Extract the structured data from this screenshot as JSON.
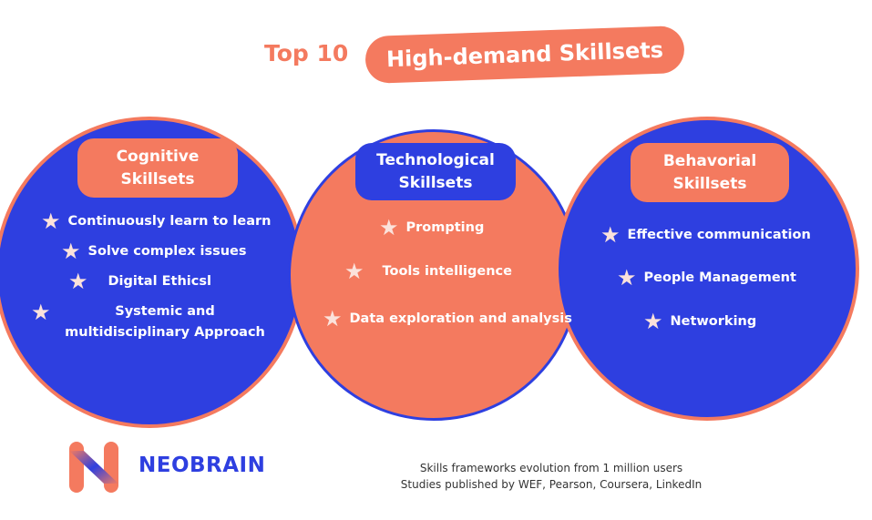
{
  "header": {
    "prefix": "Top 10",
    "title": "High-demand Skillsets"
  },
  "colors": {
    "blue": "#2e3fe0",
    "coral": "#f47a5f",
    "star": "#fbe2db"
  },
  "groups": [
    {
      "label": "Cognitive\nSkillsets",
      "items": [
        "Continuously learn to learn",
        "Solve complex issues",
        "Digital Ethicsl",
        "Systemic and multidisciplinary Approach"
      ]
    },
    {
      "label": "Technological\nSkillsets",
      "items": [
        "Prompting",
        "Tools intelligence",
        "Data exploration and analysis"
      ]
    },
    {
      "label": "Behavorial\nSkillsets",
      "items": [
        "Effective communication",
        "People Management",
        "Networking"
      ]
    }
  ],
  "footer": {
    "brand": "NEOBRAIN",
    "source_lines": [
      "Skills frameworks evolution from 1 million users",
      "Studies published by WEF, Pearson, Coursera, LinkedIn"
    ]
  },
  "icons": {
    "bullet": "star-icon",
    "logo": "neobrain-n-logo"
  }
}
